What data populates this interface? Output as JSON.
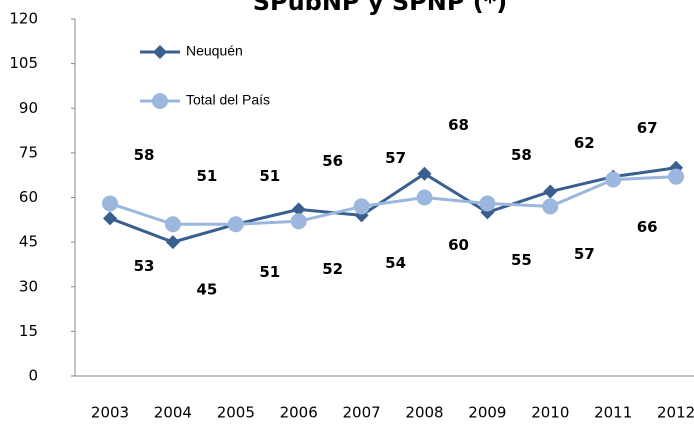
{
  "chart_data": {
    "type": "line",
    "title": "SPubNP y SPNP (*)",
    "categories": [
      "2003",
      "2004",
      "2005",
      "2006",
      "2007",
      "2008",
      "2009",
      "2010",
      "2011",
      "2012"
    ],
    "series": [
      {
        "name": "Neuquén",
        "color": "#3a5f8f",
        "marker": "diamond",
        "values": [
          53,
          45,
          51,
          56,
          54,
          68,
          55,
          62,
          67,
          70
        ]
      },
      {
        "name": "Total del País",
        "color": "#9bb7dd",
        "marker": "circle",
        "values": [
          58,
          51,
          51,
          52,
          57,
          60,
          58,
          57,
          66,
          67
        ]
      }
    ],
    "ylim": [
      0,
      120
    ],
    "yticks": [
      0,
      15,
      30,
      45,
      60,
      75,
      90,
      105,
      120
    ],
    "grid": false,
    "legend": "upper left"
  }
}
